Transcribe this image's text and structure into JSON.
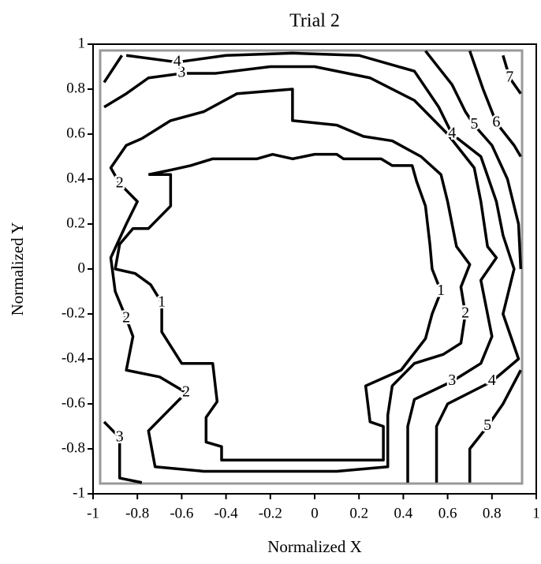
{
  "chart_data": {
    "type": "contour",
    "title": "Trial 2",
    "x_label": "Normalized X",
    "y_label": "Normalized Y",
    "xlim": [
      -1,
      1
    ],
    "ylim": [
      -1,
      1
    ],
    "xticks": [
      -1,
      -0.8,
      -0.6,
      -0.4,
      -0.2,
      0,
      0.2,
      0.4,
      0.6,
      0.8,
      1
    ],
    "yticks": [
      -1,
      -0.8,
      -0.6,
      -0.4,
      -0.2,
      0,
      0.2,
      0.4,
      0.6,
      0.8,
      1
    ],
    "color": "#000000",
    "series": [
      {
        "level": 1,
        "x": [
          -0.75,
          -0.65,
          -0.65,
          -0.75,
          -0.82,
          -0.88,
          -0.9,
          -0.81,
          -0.74,
          -0.69,
          -0.69,
          -0.6,
          -0.46,
          -0.44,
          -0.49,
          -0.49,
          -0.42,
          -0.42,
          0.31,
          0.31,
          0.25,
          0.23,
          0.39,
          0.5,
          0.53,
          0.57,
          0.53,
          0.52,
          0.5,
          0.46,
          0.44,
          0.35,
          0.3,
          0.13,
          0.1,
          0,
          -0.1,
          -0.19,
          -0.26,
          -0.35,
          -0.46,
          -0.56,
          -0.65,
          -0.75
        ],
        "y": [
          0.42,
          0.42,
          0.28,
          0.18,
          0.18,
          0.11,
          0,
          -0.02,
          -0.07,
          -0.15,
          -0.28,
          -0.42,
          -0.42,
          -0.59,
          -0.66,
          -0.77,
          -0.79,
          -0.85,
          -0.85,
          -0.7,
          -0.68,
          -0.52,
          -0.45,
          -0.31,
          -0.2,
          -0.1,
          0,
          0.11,
          0.28,
          0.39,
          0.46,
          0.46,
          0.49,
          0.49,
          0.51,
          0.51,
          0.49,
          0.51,
          0.49,
          0.49,
          0.49,
          0.46,
          0.44,
          0.42
        ]
      },
      {
        "level": 2,
        "x": [
          -0.78,
          -0.65,
          -0.5,
          -0.35,
          -0.1,
          -0.1,
          0.1,
          0.22,
          0.35,
          0.48,
          0.57,
          0.6,
          0.64,
          0.7,
          0.66,
          0.68,
          0.66,
          0.58,
          0.45,
          0.35,
          0.33,
          0.33,
          0.1,
          -0.5,
          -0.72,
          -0.75,
          -0.65,
          -0.58,
          -0.7,
          -0.85,
          -0.82,
          -0.85,
          -0.9,
          -0.92,
          -0.85,
          -0.8,
          -0.88,
          -0.92,
          -0.85,
          -0.78
        ],
        "y": [
          0.58,
          0.66,
          0.7,
          0.78,
          0.8,
          0.66,
          0.64,
          0.59,
          0.57,
          0.5,
          0.42,
          0.3,
          0.1,
          0.02,
          -0.08,
          -0.2,
          -0.33,
          -0.38,
          -0.42,
          -0.52,
          -0.65,
          -0.88,
          -0.9,
          -0.9,
          -0.88,
          -0.72,
          -0.62,
          -0.55,
          -0.48,
          -0.45,
          -0.3,
          -0.22,
          -0.1,
          0.05,
          0.2,
          0.3,
          0.38,
          0.45,
          0.55,
          0.58
        ]
      },
      {
        "level": 3,
        "x": [
          -0.95,
          -0.85,
          -0.75,
          -0.6,
          -0.45,
          -0.2,
          0,
          0.25,
          0.45,
          0.6,
          0.72,
          0.75,
          0.78,
          0.82,
          0.75,
          0.8,
          0.75,
          0.62,
          0.45,
          0.42,
          0.42
        ],
        "y": [
          0.72,
          0.78,
          0.85,
          0.87,
          0.87,
          0.9,
          0.9,
          0.85,
          0.75,
          0.6,
          0.45,
          0.3,
          0.1,
          0.05,
          -0.05,
          -0.3,
          -0.42,
          -0.5,
          -0.58,
          -0.7,
          -0.95
        ]
      },
      {
        "level": 3,
        "x": [
          -0.95,
          -0.88,
          -0.88,
          -0.78
        ],
        "y": [
          -0.68,
          -0.75,
          -0.93,
          -0.95
        ]
      },
      {
        "level": 4,
        "x": [
          -0.85,
          -0.62,
          -0.4,
          -0.1,
          0.2,
          0.45,
          0.56,
          0.62,
          0.75,
          0.82,
          0.85,
          0.9,
          0.85,
          0.92,
          0.8,
          0.7,
          0.6,
          0.55,
          0.55
        ],
        "y": [
          0.95,
          0.92,
          0.95,
          0.96,
          0.95,
          0.88,
          0.72,
          0.6,
          0.5,
          0.3,
          0.15,
          0,
          -0.2,
          -0.4,
          -0.5,
          -0.55,
          -0.6,
          -0.7,
          -0.95
        ]
      },
      {
        "level": 5,
        "x": [
          0.5,
          0.62,
          0.68,
          0.72,
          0.8,
          0.87,
          0.92,
          0.93
        ],
        "y": [
          0.97,
          0.82,
          0.7,
          0.64,
          0.55,
          0.4,
          0.2,
          0
        ]
      },
      {
        "level": 5,
        "x": [
          0.93,
          0.85,
          0.78,
          0.7,
          0.7
        ],
        "y": [
          -0.45,
          -0.6,
          -0.7,
          -0.8,
          -0.95
        ]
      },
      {
        "level": 6,
        "x": [
          0.7,
          0.76,
          0.82,
          0.9,
          0.93
        ],
        "y": [
          0.97,
          0.8,
          0.65,
          0.55,
          0.5
        ]
      },
      {
        "level": 7,
        "x": [
          0.85,
          0.88,
          0.93
        ],
        "y": [
          0.95,
          0.85,
          0.78
        ]
      },
      {
        "level": 5,
        "x": [
          -0.95,
          -0.87
        ],
        "y": [
          0.83,
          0.95
        ]
      }
    ]
  }
}
